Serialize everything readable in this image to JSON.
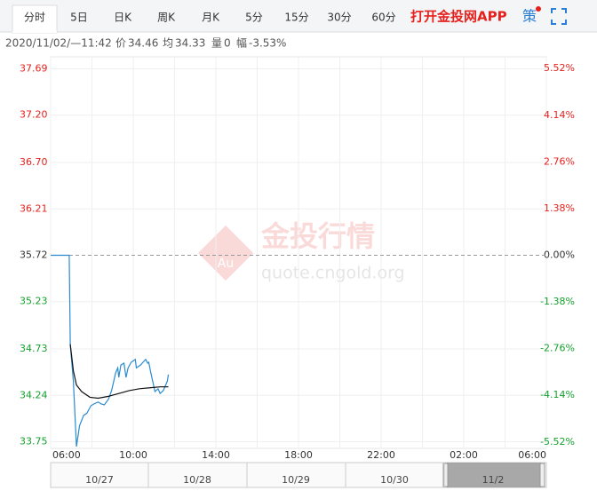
{
  "tabs": [
    "分时",
    "5日",
    "日K",
    "周K",
    "月K",
    "5分",
    "15分",
    "30分",
    "60分"
  ],
  "app_link": "打开金投网APP",
  "strategy_icon": "策",
  "info": [
    {
      "text": "2020/11/02/—11:42"
    },
    {
      "text": "价"
    },
    {
      "text": "34.46"
    },
    {
      "text": "均"
    },
    {
      "text": "34.33"
    },
    {
      "text": "量"
    },
    {
      "text": "0"
    },
    {
      "text": "幅"
    },
    {
      "text": "-3.53%"
    }
  ],
  "watermark": {
    "brand": "金投行情",
    "site": "quote.cngold.org",
    "logo": "Au"
  },
  "navigator": {
    "dates": [
      "10/27",
      "10/28",
      "10/29",
      "10/30",
      "11/2"
    ]
  },
  "chart_data": {
    "type": "line",
    "baseline": 35.72,
    "up_color": "#e6211d",
    "down_color": "#15a12f",
    "flat_color": "#333333",
    "xlim": [
      0,
      24
    ],
    "xticks": [
      {
        "value": 0,
        "label": "06:00"
      },
      {
        "value": 4,
        "label": "10:00"
      },
      {
        "value": 8,
        "label": "14:00"
      },
      {
        "value": 12,
        "label": "18:00"
      },
      {
        "value": 16,
        "label": "22:00"
      },
      {
        "value": 20,
        "label": "02:00"
      },
      {
        "value": 24,
        "label": "06:00"
      }
    ],
    "x_minor_ticks": [
      2,
      6,
      10,
      14,
      18,
      22
    ],
    "ylim": [
      33.68,
      37.76
    ],
    "yticks": [
      37.69,
      {
        "value": 37.2,
        "label": "37.20"
      },
      {
        "value": 36.7,
        "label": "36.70"
      },
      36.21,
      35.72,
      35.23,
      34.73,
      34.24,
      33.75
    ],
    "y2lim": [
      -5.71,
      5.71
    ],
    "y2ticks": [
      {
        "value": 5.52,
        "label": "5.52%"
      },
      {
        "value": 4.14,
        "label": "4.14%"
      },
      {
        "value": 2.76,
        "label": "2.76%"
      },
      {
        "value": 1.38,
        "label": "1.38%"
      },
      {
        "value": 0,
        "label": "0.00%"
      },
      {
        "value": -1.38,
        "label": "-1.38%"
      },
      {
        "value": -2.76,
        "label": "-2.76%"
      },
      {
        "value": -4.14,
        "label": "-4.14%"
      },
      {
        "value": -5.52,
        "label": "-5.52%"
      }
    ],
    "grid": true,
    "series": [
      {
        "name": "价",
        "color": "#2a8bd0",
        "x": [
          0,
          0.9,
          0.95,
          1.1,
          1.25,
          1.4,
          1.6,
          1.75,
          1.95,
          2.1,
          2.3,
          2.45,
          2.6,
          2.8,
          2.95,
          3.15,
          3.25,
          3.3,
          3.4,
          3.55,
          3.65,
          3.75,
          3.9,
          4.1,
          4.15,
          4.35,
          4.6,
          4.7,
          4.75,
          4.85,
          5.05,
          5.2,
          5.3,
          5.45,
          5.65,
          5.7
        ],
        "values": [
          35.72,
          35.72,
          34.78,
          34.39,
          33.7,
          33.92,
          34.03,
          34.05,
          34.13,
          34.15,
          34.17,
          34.15,
          34.14,
          34.2,
          34.29,
          34.48,
          34.53,
          34.43,
          34.56,
          34.58,
          34.43,
          34.53,
          34.59,
          34.62,
          34.53,
          34.56,
          34.62,
          34.58,
          34.59,
          34.48,
          34.28,
          34.31,
          34.26,
          34.29,
          34.39,
          34.46
        ]
      },
      {
        "name": "均",
        "color": "#111111",
        "x": [
          0.95,
          1.1,
          1.25,
          1.5,
          1.9,
          2.3,
          2.8,
          3.3,
          3.8,
          4.3,
          4.8,
          5.3,
          5.7
        ],
        "values": [
          34.78,
          34.5,
          34.35,
          34.28,
          34.22,
          34.21,
          34.23,
          34.26,
          34.29,
          34.31,
          34.32,
          34.33,
          34.33
        ]
      }
    ]
  }
}
